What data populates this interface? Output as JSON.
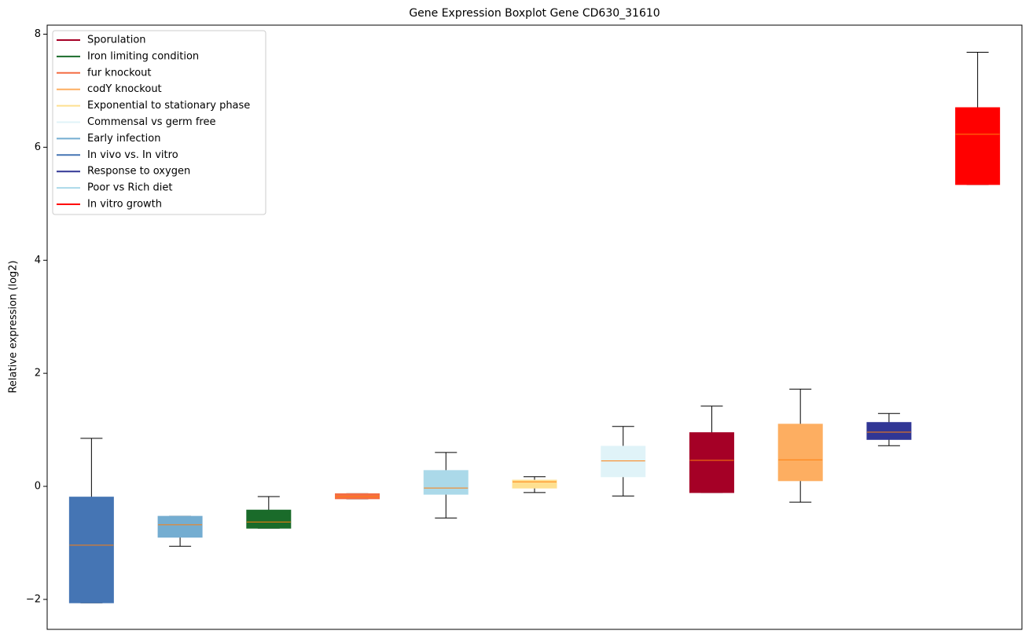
{
  "chart_data": {
    "type": "box",
    "title": "Gene Expression Boxplot Gene CD630_31610",
    "y_label": "Relative expression (log2)",
    "ylim": [
      -2.53,
      8.16
    ],
    "yticks": [
      {
        "value": -2,
        "label": "−2"
      },
      0,
      2,
      4,
      6,
      8
    ],
    "legend_position": "upper left",
    "median_color": "#ff7f0e",
    "legend": [
      {
        "name": "Sporulation",
        "color": "#a50026"
      },
      {
        "name": "Iron limiting condition",
        "color": "#1a6b2a"
      },
      {
        "name": "fur knockout",
        "color": "#f46d43"
      },
      {
        "name": "codY knockout",
        "color": "#fdae61"
      },
      {
        "name": "Exponential to stationary phase",
        "color": "#fee090"
      },
      {
        "name": "Commensal vs germ free",
        "color": "#e0f3f8"
      },
      {
        "name": "Early infection",
        "color": "#74add1"
      },
      {
        "name": "In vivo vs. In vitro",
        "color": "#4575b4"
      },
      {
        "name": "Response to oxygen",
        "color": "#313695"
      },
      {
        "name": "Poor vs Rich diet",
        "color": "#abd9e9"
      },
      {
        "name": "In vitro growth",
        "color": "#ff0000"
      }
    ],
    "boxes": [
      {
        "color": "#4575b4",
        "whislo": -2.06,
        "q1": -2.06,
        "med": -1.04,
        "q3": -0.19,
        "whishi": 0.85
      },
      {
        "color": "#74add1",
        "whislo": -1.06,
        "q1": -0.9,
        "med": -0.68,
        "q3": -0.53,
        "whishi": -0.53
      },
      {
        "color": "#1a6b2a",
        "whislo": -0.74,
        "q1": -0.74,
        "med": -0.63,
        "q3": -0.42,
        "whishi": -0.18
      },
      {
        "color": "#f46d43",
        "whislo": -0.22,
        "q1": -0.22,
        "med": -0.18,
        "q3": -0.13,
        "whishi": -0.13
      },
      {
        "color": "#abd9e9",
        "whislo": -0.56,
        "q1": -0.14,
        "med": -0.03,
        "q3": 0.28,
        "whishi": 0.6
      },
      {
        "color": "#fee090",
        "whislo": -0.11,
        "q1": -0.03,
        "med": 0.08,
        "q3": 0.11,
        "whishi": 0.17
      },
      {
        "color": "#e0f3f8",
        "whislo": -0.17,
        "q1": 0.17,
        "med": 0.45,
        "q3": 0.71,
        "whishi": 1.06
      },
      {
        "color": "#a50026",
        "whislo": -0.11,
        "q1": -0.11,
        "med": 0.46,
        "q3": 0.95,
        "whishi": 1.42
      },
      {
        "color": "#fdae61",
        "whislo": -0.28,
        "q1": 0.1,
        "med": 0.47,
        "q3": 1.1,
        "whishi": 1.72
      },
      {
        "color": "#313695",
        "whislo": 0.72,
        "q1": 0.83,
        "med": 0.96,
        "q3": 1.13,
        "whishi": 1.29
      },
      {
        "color": "#ff0000",
        "whislo": 5.34,
        "q1": 5.34,
        "med": 6.23,
        "q3": 6.7,
        "whishi": 7.68
      }
    ]
  }
}
